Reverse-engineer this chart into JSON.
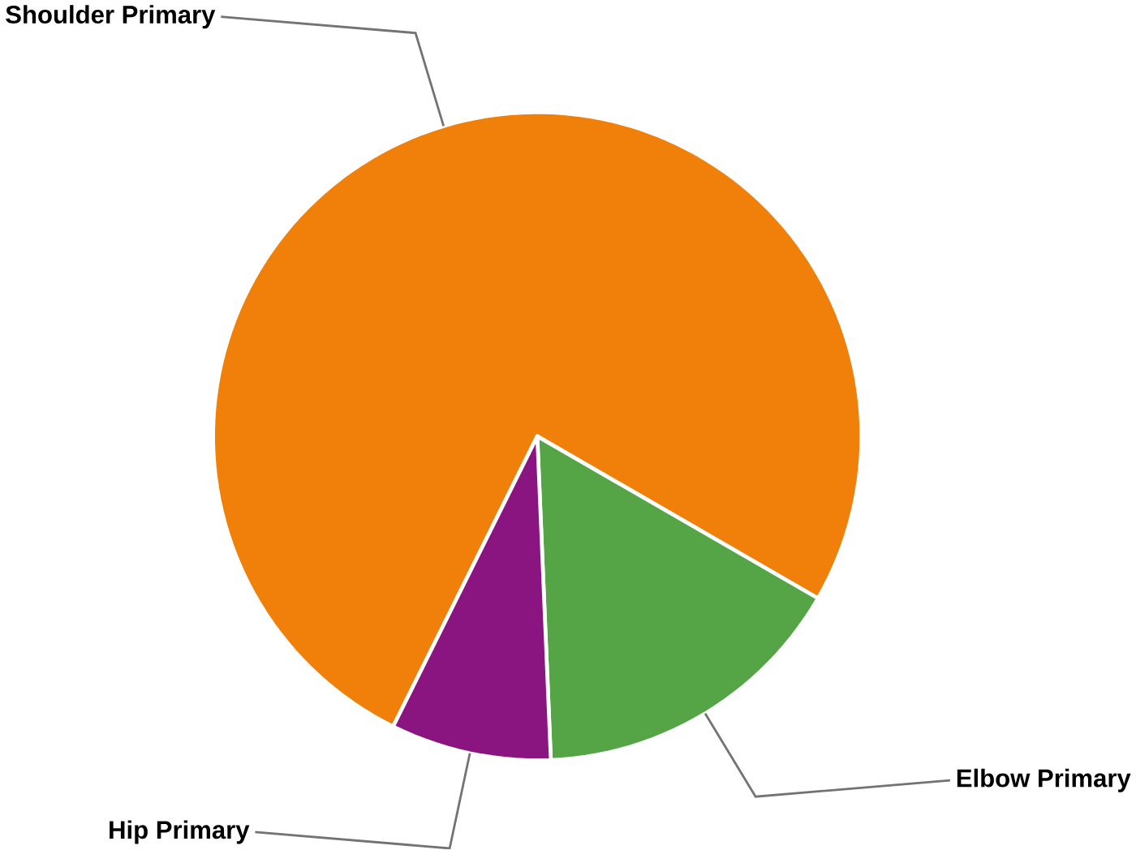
{
  "chart_data": {
    "type": "pie",
    "categories": [
      "Shoulder Primary",
      "Elbow Primary",
      "Hip Primary"
    ],
    "values": [
      76,
      16,
      8
    ],
    "colors": [
      "#f0800a",
      "#55a546",
      "#8a1480"
    ]
  }
}
